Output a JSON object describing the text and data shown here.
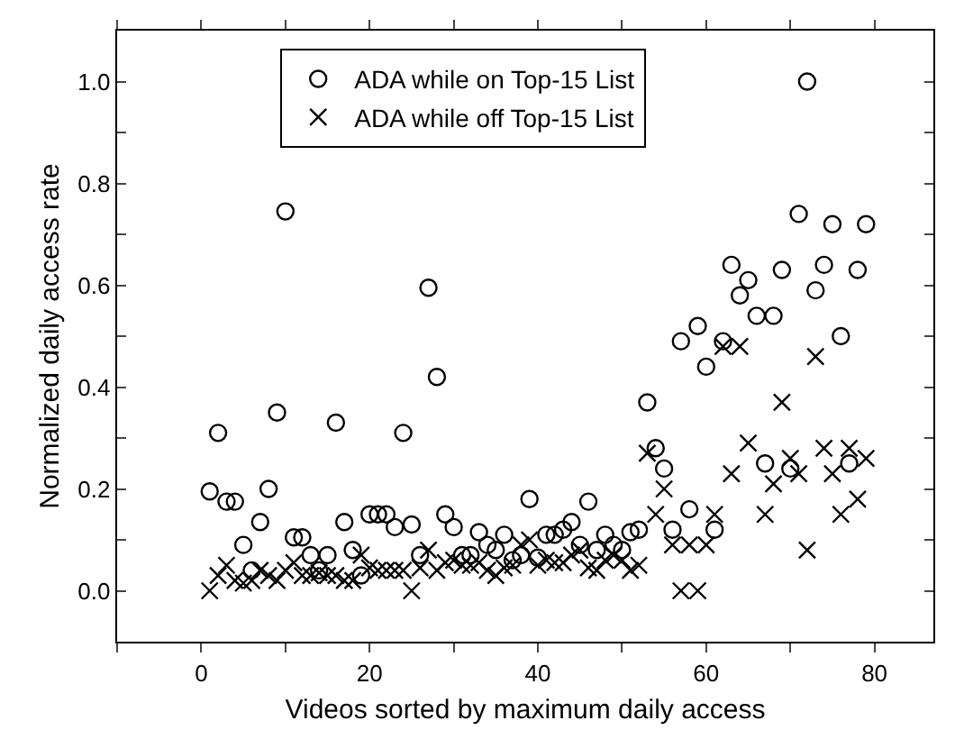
{
  "chart_data": {
    "type": "scatter",
    "xlabel": "Videos sorted by maximum daily access",
    "ylabel": "Normalized daily access rate",
    "xlim": [
      -10,
      87
    ],
    "ylim": [
      -0.1,
      1.1
    ],
    "xticks": [
      {
        "value": -10,
        "label": null
      },
      0,
      {
        "value": 10,
        "label": null
      },
      20,
      {
        "value": 30,
        "label": null
      },
      40,
      {
        "value": 50,
        "label": null
      },
      60,
      {
        "value": 70,
        "label": null
      },
      80
    ],
    "yticks": [
      {
        "value": -0.1,
        "label": null
      },
      {
        "value": 0,
        "label": "0.0"
      },
      {
        "value": 0.1,
        "label": null
      },
      0.2,
      {
        "value": 0.3,
        "label": null
      },
      0.4,
      {
        "value": 0.5,
        "label": null
      },
      0.6,
      {
        "value": 0.7,
        "label": null
      },
      0.8,
      {
        "value": 0.9,
        "label": null
      },
      {
        "value": 1,
        "label": "1.0"
      }
    ],
    "grid": false,
    "legend": "top",
    "series": [
      {
        "name": "ADA while on Top-15 List",
        "color": "#000000",
        "marker": "circle",
        "x": [
          1,
          2,
          3,
          4,
          5,
          6,
          7,
          8,
          9,
          10,
          11,
          12,
          13,
          14,
          15,
          16,
          17,
          18,
          19,
          20,
          21,
          22,
          23,
          24,
          25,
          26,
          27,
          28,
          29,
          30,
          31,
          32,
          33,
          34,
          35,
          36,
          37,
          38,
          39,
          40,
          41,
          42,
          43,
          44,
          45,
          46,
          47,
          48,
          49,
          50,
          51,
          52,
          53,
          54,
          55,
          56,
          57,
          58,
          59,
          60,
          61,
          62,
          63,
          64,
          65,
          66,
          67,
          68,
          69,
          70,
          71,
          72,
          73,
          74,
          75,
          76,
          77,
          78,
          79
        ],
        "values": [
          0.195,
          0.31,
          0.175,
          0.175,
          0.09,
          0.04,
          0.135,
          0.2,
          0.35,
          0.745,
          0.105,
          0.105,
          0.07,
          0.04,
          0.07,
          0.33,
          0.135,
          0.08,
          0.03,
          0.15,
          0.15,
          0.15,
          0.125,
          0.31,
          0.13,
          0.07,
          0.595,
          0.42,
          0.15,
          0.125,
          0.07,
          0.07,
          0.115,
          0.09,
          0.08,
          0.11,
          0.06,
          0.07,
          0.18,
          0.065,
          0.11,
          0.11,
          0.12,
          0.135,
          0.09,
          0.175,
          0.08,
          0.11,
          0.09,
          0.08,
          0.115,
          0.12,
          0.37,
          0.28,
          0.24,
          0.12,
          0.49,
          0.16,
          0.52,
          0.44,
          0.12,
          0.49,
          0.64,
          0.58,
          0.61,
          0.54,
          0.25,
          0.54,
          0.63,
          0.24,
          0.74,
          1.0,
          0.59,
          0.64,
          0.72,
          0.5,
          0.25,
          0.63,
          0.72
        ]
      },
      {
        "name": "ADA while off Top-15 List",
        "color": "#000000",
        "marker": "cross",
        "x": [
          1,
          2,
          3,
          4,
          5,
          6,
          7,
          8,
          9,
          10,
          11,
          12,
          13,
          14,
          15,
          16,
          17,
          18,
          19,
          20,
          21,
          22,
          23,
          24,
          25,
          26,
          27,
          28,
          29,
          30,
          31,
          32,
          33,
          34,
          35,
          36,
          37,
          38,
          39,
          40,
          41,
          42,
          43,
          44,
          45,
          46,
          47,
          48,
          49,
          50,
          51,
          52,
          53,
          54,
          55,
          56,
          57,
          58,
          59,
          60,
          61,
          62,
          63,
          64,
          65,
          67,
          68,
          69,
          70,
          71,
          72,
          73,
          74,
          75,
          76,
          77,
          78,
          79
        ],
        "values": [
          0.0,
          0.03,
          0.05,
          0.02,
          0.015,
          0.02,
          0.04,
          0.03,
          0.02,
          0.04,
          0.055,
          0.03,
          0.03,
          0.035,
          0.03,
          0.03,
          0.02,
          0.02,
          0.07,
          0.045,
          0.04,
          0.04,
          0.04,
          0.04,
          0.0,
          0.045,
          0.08,
          0.04,
          0.055,
          0.06,
          0.05,
          0.05,
          0.055,
          0.04,
          0.03,
          0.045,
          0.05,
          0.09,
          0.1,
          0.05,
          0.06,
          0.055,
          0.055,
          0.07,
          0.08,
          0.045,
          0.04,
          0.06,
          0.07,
          0.06,
          0.04,
          0.05,
          0.27,
          0.15,
          0.2,
          0.09,
          0.0,
          0.09,
          0.0,
          0.09,
          0.15,
          0.48,
          0.23,
          0.48,
          0.29,
          0.15,
          0.21,
          0.37,
          0.26,
          0.23,
          0.08,
          0.46,
          0.28,
          0.23,
          0.15,
          0.28,
          0.18,
          0.26
        ]
      }
    ]
  }
}
